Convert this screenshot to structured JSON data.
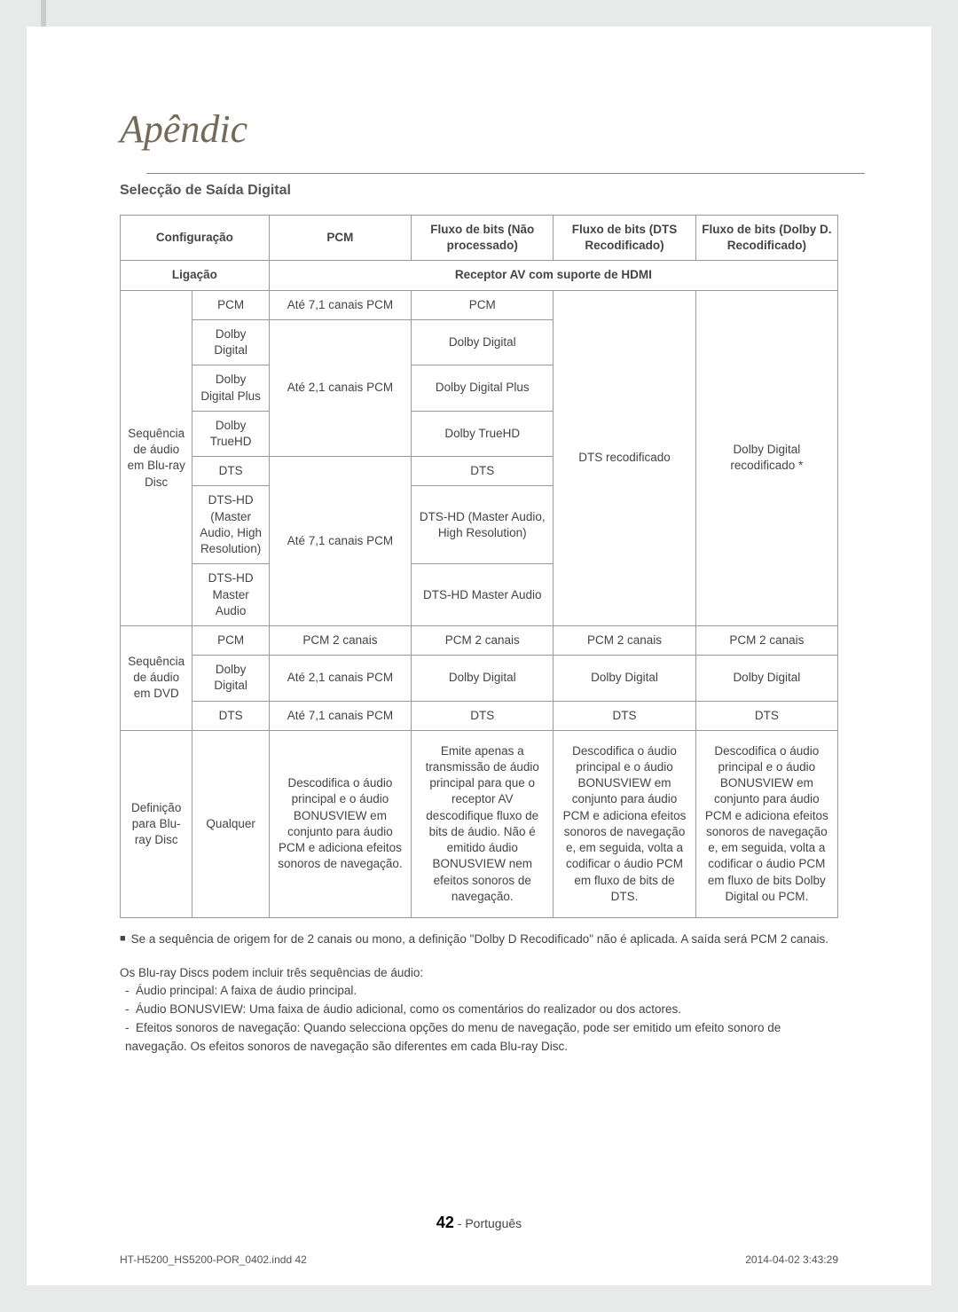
{
  "section_title": "Apêndic",
  "subsection_title": "Selecção de Saída Digital",
  "table": {
    "header_row1": {
      "config": "Configuração",
      "pcm": "PCM",
      "bits_unproc": "Fluxo de bits (Não processado)",
      "bits_dts": "Fluxo de bits (DTS Recodificado)",
      "bits_dolby": "Fluxo de bits (Dolby D. Recodificado)"
    },
    "header_row2": {
      "connection": "Ligação",
      "receiver": "Receptor AV com suporte de HDMI"
    },
    "bluray": {
      "group_label": "Sequência de áudio em Blu-ray Disc",
      "rows": [
        {
          "format": "PCM",
          "pcm": "Até 7,1 canais PCM",
          "unproc": "PCM"
        },
        {
          "format": "Dolby Digital",
          "pcm": "",
          "unproc": "Dolby Digital"
        },
        {
          "format": "Dolby Digital Plus",
          "pcm": "Até 2,1 canais PCM",
          "unproc": "Dolby Digital Plus"
        },
        {
          "format": "Dolby TrueHD",
          "pcm": "",
          "unproc": "Dolby TrueHD"
        },
        {
          "format": "DTS",
          "pcm": "",
          "unproc": "DTS"
        },
        {
          "format": "DTS-HD (Master Audio, High Resolution)",
          "pcm": "Até 7,1 canais PCM",
          "unproc": "DTS-HD (Master Audio, High Resolution)"
        },
        {
          "format": "DTS-HD Master Audio",
          "pcm": "",
          "unproc": "DTS-HD Master Audio"
        }
      ],
      "dts_recod": "DTS recodificado",
      "dolby_recod": "Dolby Digital recodificado *"
    },
    "dvd": {
      "group_label": "Sequência de áudio em DVD",
      "rows": [
        {
          "format": "PCM",
          "pcm": "PCM 2 canais",
          "unproc": "PCM 2 canais",
          "dts": "PCM 2 canais",
          "dolby": "PCM 2 canais"
        },
        {
          "format": "Dolby Digital",
          "pcm": "Até 2,1 canais PCM",
          "unproc": "Dolby Digital",
          "dts": "Dolby Digital",
          "dolby": "Dolby Digital"
        },
        {
          "format": "DTS",
          "pcm": "Até 7,1 canais PCM",
          "unproc": "DTS",
          "dts": "DTS",
          "dolby": "DTS"
        }
      ]
    },
    "definition": {
      "group_label": "Definição para Blu-ray Disc",
      "format": "Qualquer",
      "pcm": "Descodifica o áudio principal e o áudio BONUSVIEW em conjunto para áudio PCM e adiciona efeitos sonoros de navegação.",
      "unproc": "Emite apenas a transmissão de áudio principal para que o receptor AV descodifique fluxo de bits de áudio. Não é emitido áudio BONUSVIEW nem efeitos sonoros de navegação.",
      "dts": "Descodifica o áudio principal e o áudio BONUSVIEW em conjunto para áudio PCM e adiciona efeitos sonoros de navegação e, em seguida, volta a codificar o áudio PCM em fluxo de bits de DTS.",
      "dolby": "Descodifica o áudio principal e o áudio BONUSVIEW em conjunto para áudio PCM e adiciona efeitos sonoros de navegação e, em seguida, volta a codificar o áudio PCM em fluxo de bits Dolby Digital ou PCM."
    }
  },
  "footnote": "Se a sequência de origem for de 2 canais ou mono, a definição \"Dolby D Recodificado\" não é aplicada. A saída será PCM 2 canais.",
  "audio_intro": "Os Blu-ray Discs podem incluir três sequências de áudio:",
  "audio_list": [
    "Áudio principal: A faixa de áudio principal.",
    "Áudio BONUSVIEW: Uma faixa de áudio adicional, como os comentários do realizador ou dos actores.",
    "Efeitos sonoros de navegação: Quando selecciona opções do menu de navegação, pode ser emitido um efeito sonoro de navegação. Os efeitos sonoros de navegação são diferentes em cada Blu-ray Disc."
  ],
  "page_number": "42",
  "page_lang": "Português",
  "footer_file": "HT-H5200_HS5200-POR_0402.indd   42",
  "footer_date": "2014-04-02    3:43:29"
}
